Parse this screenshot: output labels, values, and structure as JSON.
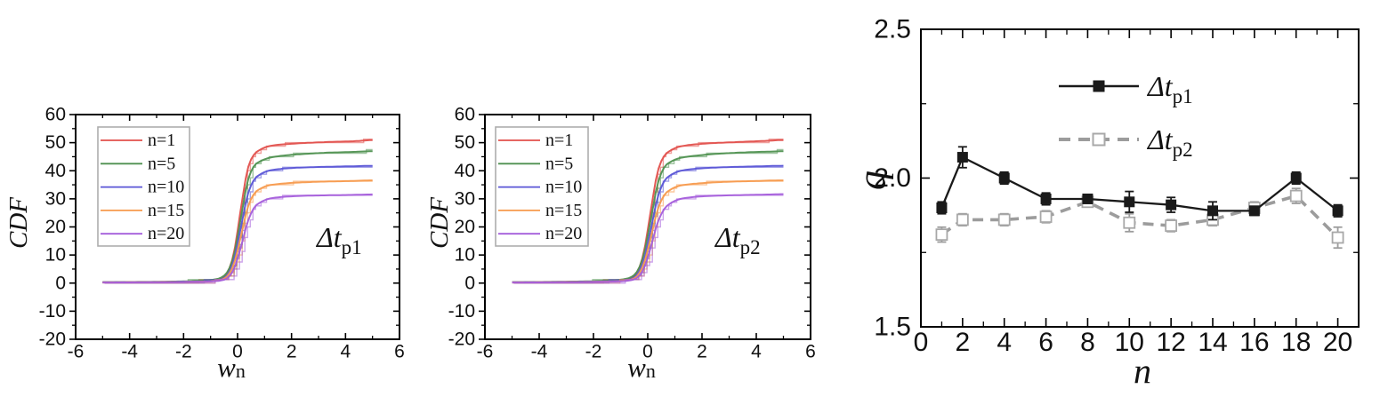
{
  "figure": {
    "background": "#ffffff",
    "text_color": "#111111",
    "axis_color": "#000000",
    "legend_border_color": "#adadad"
  },
  "chart_data": [
    {
      "id": "cdf_p1",
      "type": "line",
      "ylabel": "CDF",
      "xlabel_main": "w",
      "xlabel_sub": "n",
      "annotation_main": "Δt",
      "annotation_sub": "p1",
      "xlim": [
        -6,
        6
      ],
      "ylim": [
        -20,
        60
      ],
      "xticks": [
        -6,
        -4,
        -2,
        0,
        2,
        4,
        6
      ],
      "xticklabels": [
        "-6",
        "-4",
        "-2",
        "0",
        "2",
        "4",
        "6"
      ],
      "yticks": [
        -20,
        -10,
        0,
        10,
        20,
        30,
        40,
        50,
        60
      ],
      "yticklabels": [
        "-20",
        "-10",
        "0",
        "10",
        "20",
        "30",
        "40",
        "50",
        "60"
      ],
      "x_minor_step": 1,
      "y_minor_step": 5,
      "grid": false,
      "legend_position": "top-left",
      "x": [
        -5,
        -4,
        -3,
        -2,
        -1,
        -0.5,
        -0.25,
        0,
        0.25,
        0.5,
        1,
        1.5,
        2,
        2.5,
        3,
        3.5,
        4,
        4.5,
        5
      ],
      "series": [
        {
          "name": "n=1",
          "color": "#e2504c",
          "values": [
            0.3,
            0.35,
            0.4,
            0.5,
            0.8,
            1.5,
            4.5,
            16,
            38,
            45.5,
            48.5,
            49.3,
            49.6,
            49.9,
            50.1,
            50.3,
            50.4,
            50.6,
            51
          ]
        },
        {
          "name": "n=5",
          "color": "#4f9150",
          "values": [
            0.3,
            0.4,
            0.45,
            0.6,
            1,
            2,
            5,
            14,
            33,
            41.5,
            44.3,
            45.2,
            45.7,
            46,
            46.3,
            46.5,
            46.6,
            46.8,
            47
          ]
        },
        {
          "name": "n=10",
          "color": "#5a55d6",
          "values": [
            0.25,
            0.3,
            0.35,
            0.45,
            0.7,
            1.4,
            3.5,
            12,
            28,
            36.5,
            39.8,
            40.6,
            41,
            41.2,
            41.35,
            41.45,
            41.55,
            41.65,
            41.8
          ]
        },
        {
          "name": "n=15",
          "color": "#f79a4d",
          "values": [
            0.2,
            0.3,
            0.35,
            0.4,
            0.6,
            1.2,
            3,
            10,
            23.5,
            31.5,
            34.6,
            35.3,
            35.7,
            35.9,
            36.1,
            36.2,
            36.3,
            36.45,
            36.6
          ]
        },
        {
          "name": "n=20",
          "color": "#a45ddb",
          "values": [
            0.2,
            0.25,
            0.3,
            0.4,
            0.55,
            1,
            2,
            7.5,
            18,
            26.5,
            29.8,
            30.6,
            30.9,
            31.1,
            31.2,
            31.3,
            31.35,
            31.45,
            31.6
          ]
        }
      ]
    },
    {
      "id": "cdf_p2",
      "type": "line",
      "ylabel": "CDF",
      "xlabel_main": "w",
      "xlabel_sub": "n",
      "annotation_main": "Δt",
      "annotation_sub": "p2",
      "xlim": [
        -6,
        6
      ],
      "ylim": [
        -20,
        60
      ],
      "xticks": [
        -6,
        -4,
        -2,
        0,
        2,
        4,
        6
      ],
      "xticklabels": [
        "-6",
        "-4",
        "-2",
        "0",
        "2",
        "4",
        "6"
      ],
      "yticks": [
        -20,
        -10,
        0,
        10,
        20,
        30,
        40,
        50,
        60
      ],
      "yticklabels": [
        "-20",
        "-10",
        "0",
        "10",
        "20",
        "30",
        "40",
        "50",
        "60"
      ],
      "x_minor_step": 1,
      "y_minor_step": 5,
      "grid": false,
      "legend_position": "top-left",
      "x": [
        -5,
        -4,
        -3,
        -2,
        -1,
        -0.5,
        -0.25,
        0,
        0.25,
        0.5,
        1,
        1.5,
        2,
        2.5,
        3,
        3.5,
        4,
        4.5,
        5
      ],
      "series": [
        {
          "name": "n=1",
          "color": "#e2504c",
          "values": [
            0.3,
            0.35,
            0.45,
            0.55,
            0.9,
            1.8,
            5,
            17,
            37,
            45,
            48.3,
            49.2,
            49.6,
            49.9,
            50.1,
            50.3,
            50.5,
            50.7,
            51
          ]
        },
        {
          "name": "n=5",
          "color": "#4f9150",
          "values": [
            0.3,
            0.4,
            0.5,
            0.65,
            1.1,
            2.2,
            5.5,
            15,
            32,
            41,
            44.2,
            45.1,
            45.6,
            46,
            46.3,
            46.5,
            46.7,
            46.8,
            47
          ]
        },
        {
          "name": "n=10",
          "color": "#5a55d6",
          "values": [
            0.25,
            0.3,
            0.4,
            0.5,
            0.8,
            1.5,
            4,
            12.5,
            27,
            36,
            39.6,
            40.5,
            40.9,
            41.15,
            41.3,
            41.45,
            41.55,
            41.7,
            41.8
          ]
        },
        {
          "name": "n=15",
          "color": "#f79a4d",
          "values": [
            0.2,
            0.3,
            0.35,
            0.45,
            0.65,
            1.3,
            3.2,
            10.5,
            23,
            31,
            34.4,
            35.2,
            35.6,
            35.9,
            36.1,
            36.25,
            36.35,
            36.5,
            36.6
          ]
        },
        {
          "name": "n=20",
          "color": "#a45ddb",
          "values": [
            0.2,
            0.25,
            0.3,
            0.4,
            0.6,
            1.1,
            2.2,
            8,
            18.5,
            26,
            29.6,
            30.5,
            30.9,
            31.1,
            31.25,
            31.35,
            31.45,
            31.55,
            31.7
          ]
        }
      ]
    },
    {
      "id": "q_n",
      "type": "scatter-line-errorbar",
      "ylabel": "q",
      "xlabel": "n",
      "xlim": [
        0,
        21
      ],
      "ylim": [
        1.5,
        2.5
      ],
      "xticks": [
        0,
        2,
        4,
        6,
        8,
        10,
        12,
        14,
        16,
        18,
        20
      ],
      "xticklabels": [
        "0",
        "2",
        "4",
        "6",
        "8",
        "10",
        "12",
        "14",
        "16",
        "18",
        "20"
      ],
      "yticks": [
        1.5,
        2.0,
        2.5
      ],
      "yticklabels": [
        "1.5",
        "2.0",
        "2.5"
      ],
      "x_minor_step": 1,
      "y_minor_step": 0.25,
      "grid": false,
      "legend_position": "top-center",
      "x": [
        1,
        2,
        4,
        6,
        8,
        10,
        12,
        14,
        16,
        18,
        20
      ],
      "series": [
        {
          "name_main": "Δt",
          "name_sub": "p1",
          "line": "solid",
          "marker": "filled-square",
          "color": "#1a1a1a",
          "values": [
            1.9,
            2.07,
            2.0,
            1.93,
            1.93,
            1.92,
            1.91,
            1.89,
            1.89,
            2.0,
            1.89
          ],
          "errors": [
            0.02,
            0.035,
            0.02,
            0.02,
            0.012,
            0.035,
            0.025,
            0.03,
            0.015,
            0.02,
            0.02
          ]
        },
        {
          "name_main": "Δt",
          "name_sub": "p2",
          "line": "dashed",
          "marker": "open-square",
          "color": "#9c9c9c",
          "values": [
            1.81,
            1.86,
            1.86,
            1.87,
            1.92,
            1.85,
            1.84,
            1.86,
            1.9,
            1.94,
            1.8
          ],
          "errors": [
            0.025,
            0.02,
            0.02,
            0.02,
            0.012,
            0.03,
            0.02,
            0.02,
            0.02,
            0.025,
            0.035
          ]
        }
      ]
    }
  ]
}
